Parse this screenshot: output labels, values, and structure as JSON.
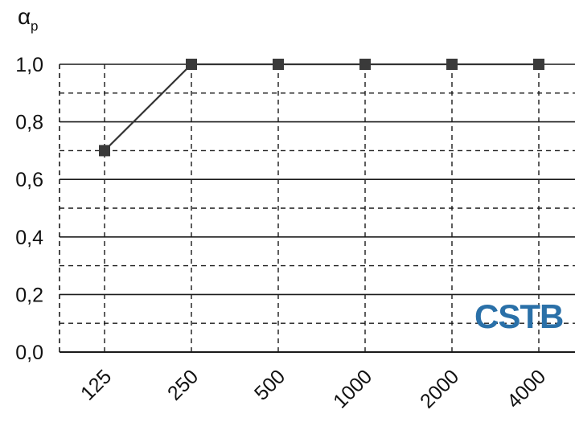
{
  "chart_data": {
    "type": "line",
    "ylabel": "α",
    "ylabel_subscript": "p",
    "x_categories": [
      "125",
      "250",
      "500",
      "1000",
      "2000",
      "4000"
    ],
    "y_values": [
      0.7,
      1.0,
      1.0,
      1.0,
      1.0,
      1.0
    ],
    "ylim": [
      0.0,
      1.0
    ],
    "y_ticks": [
      "0,0",
      "0,2",
      "0,4",
      "0,6",
      "0,8",
      "1,0"
    ],
    "y_minor_grid": [
      0.1,
      0.3,
      0.5,
      0.7,
      0.9
    ],
    "grid": true,
    "x_grid_style": "dashed",
    "y_major_grid_style": "solid",
    "y_minor_grid_style": "dashed",
    "marker": "square",
    "line_color": "#333333",
    "marker_color": "#3a3a3a",
    "grid_color": "#1a1a1a"
  },
  "watermark": {
    "text": "CSTB",
    "color": "#2a70a8"
  }
}
